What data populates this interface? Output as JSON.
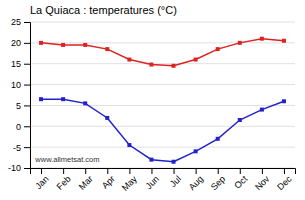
{
  "chart_data": {
    "type": "line",
    "title": "La Quiaca : temperatures (°C)",
    "categories": [
      "Jan",
      "Feb",
      "Mar",
      "Apr",
      "May",
      "Jun",
      "Jul",
      "Aug",
      "Sep",
      "Oct",
      "Nov",
      "Dec"
    ],
    "series": [
      {
        "color": "#dd2222",
        "marker": "square",
        "values": [
          20.0,
          19.5,
          19.5,
          18.5,
          16.0,
          14.8,
          14.5,
          16.0,
          18.5,
          20.0,
          21.0,
          20.5
        ]
      },
      {
        "color": "#2222cc",
        "marker": "square",
        "values": [
          6.5,
          6.5,
          5.5,
          2.0,
          -4.5,
          -8.0,
          -8.5,
          -6.0,
          -3.0,
          1.5,
          4.0,
          6.0
        ]
      }
    ],
    "ylim": [
      -10,
      25
    ],
    "yticks": [
      -10,
      -5,
      0,
      5,
      10,
      15,
      20,
      25
    ],
    "grid": true,
    "annotations": [
      "www.allmetsat.com"
    ]
  }
}
